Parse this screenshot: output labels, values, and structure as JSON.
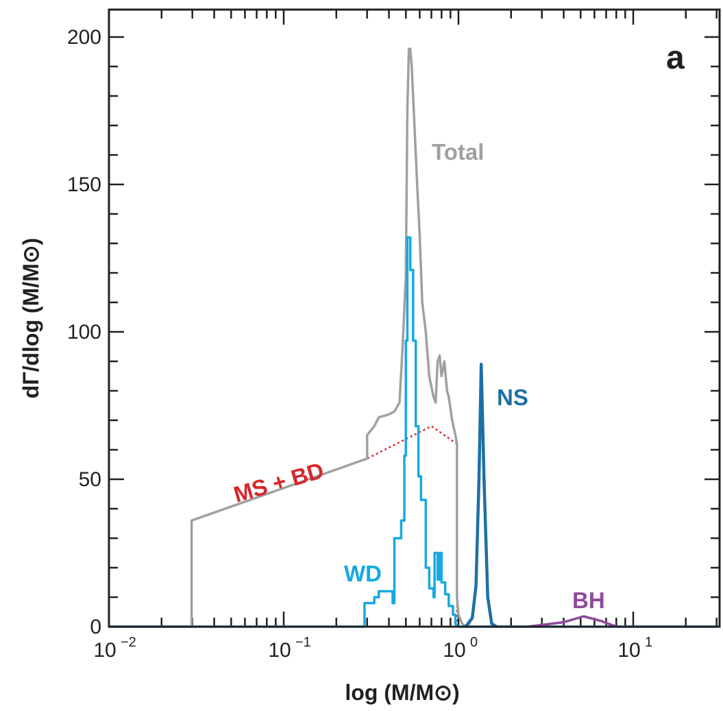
{
  "chart_data": {
    "type": "line",
    "panel_label": "a",
    "xlabel": "log (M/M⊙)",
    "ylabel": "dΓ/dlog (M/M⊙)",
    "xscale": "log",
    "xlim": [
      0.01,
      30
    ],
    "ylim": [
      0,
      200
    ],
    "x_ticks": [
      {
        "value": 0.01,
        "base": "10",
        "exp": "−2"
      },
      {
        "value": 0.1,
        "base": "10",
        "exp": "−1"
      },
      {
        "value": 1,
        "base": "10",
        "exp": "0"
      },
      {
        "value": 10,
        "base": "10",
        "exp": "1"
      }
    ],
    "y_ticks": [
      0,
      50,
      100,
      150,
      200
    ],
    "grid": false,
    "legend": "none",
    "series": [
      {
        "name": "Total",
        "color": "#a0a0a0",
        "style": "step",
        "points": [
          [
            0.01,
            0
          ],
          [
            0.0297,
            0
          ],
          [
            0.0297,
            36
          ],
          [
            0.3,
            57
          ],
          [
            0.3,
            65
          ],
          [
            0.33,
            68
          ],
          [
            0.35,
            71
          ],
          [
            0.4,
            72
          ],
          [
            0.43,
            73
          ],
          [
            0.46,
            76
          ],
          [
            0.48,
            96
          ],
          [
            0.5,
            119
          ],
          [
            0.51,
            175
          ],
          [
            0.52,
            196
          ],
          [
            0.53,
            196
          ],
          [
            0.54,
            190
          ],
          [
            0.56,
            170
          ],
          [
            0.58,
            150
          ],
          [
            0.6,
            133
          ],
          [
            0.62,
            110
          ],
          [
            0.65,
            100
          ],
          [
            0.68,
            85
          ],
          [
            0.72,
            78
          ],
          [
            0.74,
            76
          ],
          [
            0.76,
            90
          ],
          [
            0.78,
            92
          ],
          [
            0.8,
            85
          ],
          [
            0.83,
            90
          ],
          [
            0.86,
            80
          ],
          [
            0.88,
            78
          ],
          [
            0.92,
            70
          ],
          [
            0.96,
            65
          ],
          [
            0.98,
            62
          ],
          [
            0.98,
            10
          ],
          [
            1.0,
            4
          ],
          [
            1.05,
            1
          ],
          [
            1.1,
            0
          ],
          [
            1.12,
            0
          ],
          [
            1.2,
            3
          ],
          [
            1.26,
            14
          ],
          [
            1.31,
            50
          ],
          [
            1.35,
            89
          ],
          [
            1.4,
            50
          ],
          [
            1.47,
            10
          ],
          [
            1.55,
            1
          ],
          [
            1.65,
            0
          ],
          [
            2.5,
            0
          ],
          [
            4.0,
            1.5
          ],
          [
            5.2,
            3.5
          ],
          [
            6.5,
            2
          ],
          [
            8.0,
            0
          ],
          [
            30,
            0
          ]
        ]
      },
      {
        "name": "MS + BD",
        "color": "#d7262b",
        "style": "dotted",
        "points": [
          [
            0.0297,
            0
          ],
          [
            0.0297,
            36
          ],
          [
            0.3,
            57
          ],
          [
            0.7,
            68
          ],
          [
            0.98,
            62
          ],
          [
            0.98,
            0
          ]
        ]
      },
      {
        "name": "WD",
        "color": "#16a9e1",
        "style": "step",
        "points": [
          [
            0.01,
            0
          ],
          [
            0.29,
            0
          ],
          [
            0.29,
            8
          ],
          [
            0.33,
            8
          ],
          [
            0.33,
            10
          ],
          [
            0.35,
            10
          ],
          [
            0.35,
            12
          ],
          [
            0.42,
            12
          ],
          [
            0.42,
            8
          ],
          [
            0.43,
            8
          ],
          [
            0.43,
            30
          ],
          [
            0.47,
            30
          ],
          [
            0.47,
            36
          ],
          [
            0.49,
            36
          ],
          [
            0.49,
            58
          ],
          [
            0.5,
            58
          ],
          [
            0.5,
            97
          ],
          [
            0.51,
            97
          ],
          [
            0.51,
            132
          ],
          [
            0.53,
            132
          ],
          [
            0.53,
            121
          ],
          [
            0.55,
            121
          ],
          [
            0.55,
            97
          ],
          [
            0.57,
            97
          ],
          [
            0.57,
            68
          ],
          [
            0.59,
            68
          ],
          [
            0.59,
            51
          ],
          [
            0.61,
            51
          ],
          [
            0.61,
            43
          ],
          [
            0.65,
            43
          ],
          [
            0.65,
            20
          ],
          [
            0.68,
            20
          ],
          [
            0.68,
            13
          ],
          [
            0.72,
            13
          ],
          [
            0.72,
            10
          ],
          [
            0.73,
            10
          ],
          [
            0.73,
            25
          ],
          [
            0.76,
            25
          ],
          [
            0.76,
            16
          ],
          [
            0.78,
            16
          ],
          [
            0.78,
            25
          ],
          [
            0.8,
            25
          ],
          [
            0.8,
            15
          ],
          [
            0.84,
            15
          ],
          [
            0.84,
            11
          ],
          [
            0.88,
            11
          ],
          [
            0.88,
            7
          ],
          [
            0.93,
            7
          ],
          [
            0.93,
            4
          ],
          [
            0.96,
            4
          ],
          [
            0.96,
            1
          ],
          [
            1.0,
            0
          ],
          [
            30,
            0
          ]
        ]
      },
      {
        "name": "NS",
        "color": "#1d6fa5",
        "style": "line",
        "points": [
          [
            1.1,
            0
          ],
          [
            1.2,
            3
          ],
          [
            1.26,
            14
          ],
          [
            1.31,
            50
          ],
          [
            1.35,
            89
          ],
          [
            1.4,
            50
          ],
          [
            1.47,
            10
          ],
          [
            1.55,
            1
          ],
          [
            1.65,
            0
          ]
        ]
      },
      {
        "name": "BH",
        "color": "#8e4a9c",
        "style": "line",
        "points": [
          [
            2.5,
            0
          ],
          [
            4.0,
            1.5
          ],
          [
            5.2,
            3.5
          ],
          [
            6.5,
            2
          ],
          [
            8.0,
            0
          ]
        ]
      }
    ]
  }
}
